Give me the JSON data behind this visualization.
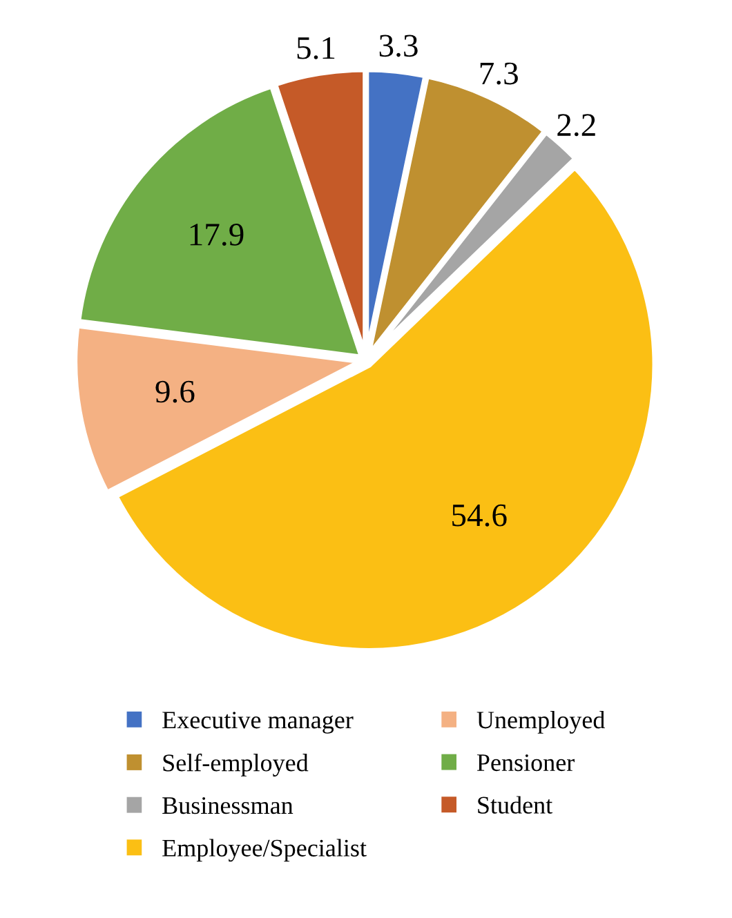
{
  "chart_data": {
    "type": "pie",
    "categories": [
      "Executive manager",
      "Self-employed",
      "Businessman",
      "Employee/Specialist",
      "Unemployed",
      "Pensioner",
      "Student"
    ],
    "values": [
      3.3,
      7.3,
      2.2,
      54.6,
      9.6,
      17.9,
      5.1
    ],
    "colors": [
      "#4472c4",
      "#bf9030",
      "#a5a5a5",
      "#fbbf14",
      "#f4b183",
      "#70ad47",
      "#c55a28"
    ],
    "data_labels": true,
    "legend": "bottom"
  }
}
